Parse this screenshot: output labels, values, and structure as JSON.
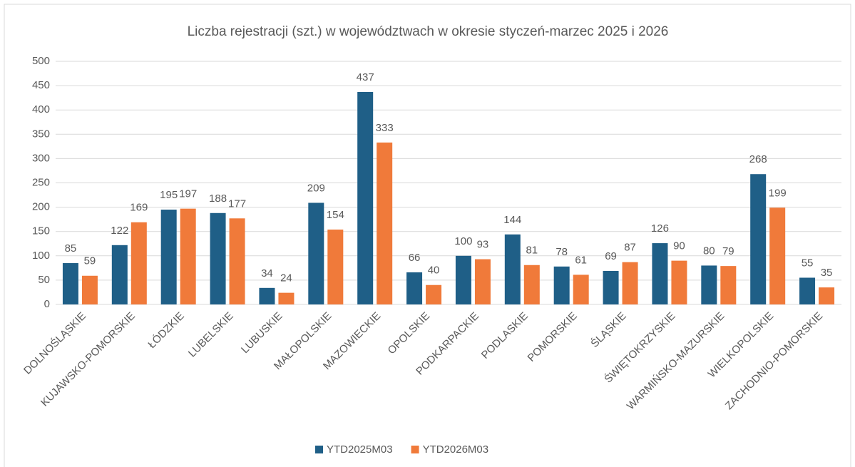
{
  "chart_data": {
    "type": "bar",
    "title": "Liczba rejestracji (szt.) w województwach w okresie styczeń-marzec 2025 i 2026",
    "categories": [
      "DOLNOŚLĄSKIE",
      "KUJAWSKO-POMORSKIE",
      "ŁÓDZKIE",
      "LUBELSKIE",
      "LUBUSKIE",
      "MAŁOPOLSKIE",
      "MAZOWIECKIE",
      "OPOLSKIE",
      "PODKARPACKIE",
      "PODLASKIE",
      "POMORSKIE",
      "ŚLĄSKIE",
      "ŚWIĘTOKRZYSKIE",
      "WARMIŃSKO-MAZURSKIE",
      "WIELKOPOLSKIE",
      "ZACHODNIO-POMORSKIE"
    ],
    "series": [
      {
        "name": "YTD2025M03",
        "color": "#1f5f87",
        "values": [
          85,
          122,
          195,
          188,
          34,
          209,
          437,
          66,
          100,
          144,
          78,
          69,
          126,
          80,
          268,
          55
        ]
      },
      {
        "name": "YTD2026M03",
        "color": "#f07a3a",
        "values": [
          59,
          169,
          197,
          177,
          24,
          154,
          333,
          40,
          93,
          81,
          61,
          87,
          90,
          79,
          199,
          35
        ]
      }
    ],
    "ylim": [
      0,
      500
    ],
    "yticks": [
      0,
      50,
      100,
      150,
      200,
      250,
      300,
      350,
      400,
      450,
      500
    ],
    "grid": true,
    "legend": "bottom"
  }
}
